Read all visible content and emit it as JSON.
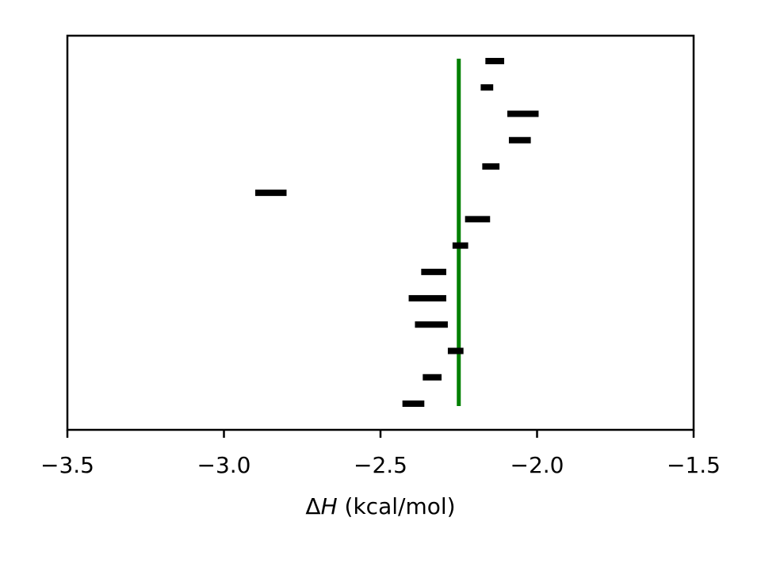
{
  "chart_data": {
    "type": "scatter",
    "xlabel": "ΔH (kcal/mol)",
    "xlim": [
      -3.5,
      -1.5
    ],
    "xticks": [
      -3.5,
      -3.0,
      -2.5,
      -2.0,
      -1.5
    ],
    "xtick_labels": [
      "−3.5",
      "−3.0",
      "−2.5",
      "−2.0",
      "−1.5"
    ],
    "yticks": [],
    "grid": false,
    "legend": false,
    "intervals": [
      {
        "low": -2.165,
        "high": -2.105
      },
      {
        "low": -2.18,
        "high": -2.14
      },
      {
        "low": -2.095,
        "high": -1.995
      },
      {
        "low": -2.09,
        "high": -2.02
      },
      {
        "low": -2.175,
        "high": -2.12
      },
      {
        "low": -2.9,
        "high": -2.8
      },
      {
        "low": -2.23,
        "high": -2.15
      },
      {
        "low": -2.27,
        "high": -2.22
      },
      {
        "low": -2.37,
        "high": -2.29
      },
      {
        "low": -2.41,
        "high": -2.29
      },
      {
        "low": -2.39,
        "high": -2.285
      },
      {
        "low": -2.285,
        "high": -2.235
      },
      {
        "low": -2.365,
        "high": -2.305
      },
      {
        "low": -2.43,
        "high": -2.36
      }
    ],
    "reference_line": {
      "x": -2.25,
      "color": "#008000"
    },
    "bar_color": "#000000"
  }
}
